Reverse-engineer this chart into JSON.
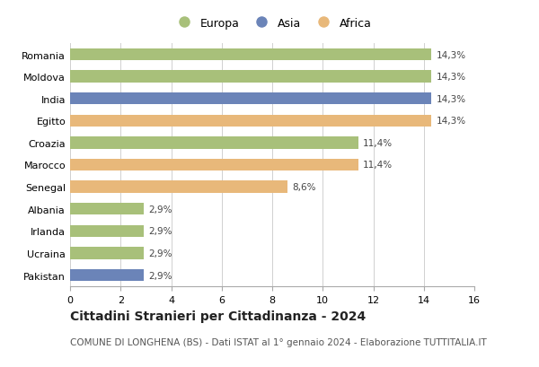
{
  "countries": [
    "Romania",
    "Moldova",
    "India",
    "Egitto",
    "Croazia",
    "Marocco",
    "Senegal",
    "Albania",
    "Irlanda",
    "Ucraina",
    "Pakistan"
  ],
  "values": [
    14.3,
    14.3,
    14.3,
    14.3,
    11.4,
    11.4,
    8.6,
    2.9,
    2.9,
    2.9,
    2.9
  ],
  "labels": [
    "14,3%",
    "14,3%",
    "14,3%",
    "14,3%",
    "11,4%",
    "11,4%",
    "8,6%",
    "2,9%",
    "2,9%",
    "2,9%",
    "2,9%"
  ],
  "colors": [
    "#a8c07a",
    "#a8c07a",
    "#6b84b8",
    "#e8b87a",
    "#a8c07a",
    "#e8b87a",
    "#e8b87a",
    "#a8c07a",
    "#a8c07a",
    "#a8c07a",
    "#6b84b8"
  ],
  "legend": [
    {
      "label": "Europa",
      "color": "#a8c07a"
    },
    {
      "label": "Asia",
      "color": "#6b84b8"
    },
    {
      "label": "Africa",
      "color": "#e8b87a"
    }
  ],
  "xlim": [
    0,
    16
  ],
  "xticks": [
    0,
    2,
    4,
    6,
    8,
    10,
    12,
    14,
    16
  ],
  "title": "Cittadini Stranieri per Cittadinanza - 2024",
  "subtitle": "COMUNE DI LONGHENA (BS) - Dati ISTAT al 1° gennaio 2024 - Elaborazione TUTTITALIA.IT",
  "title_fontsize": 10,
  "subtitle_fontsize": 7.5,
  "label_fontsize": 7.5,
  "tick_fontsize": 8,
  "legend_fontsize": 9,
  "bar_height": 0.55,
  "background_color": "#ffffff",
  "grid_color": "#d0d0d0"
}
